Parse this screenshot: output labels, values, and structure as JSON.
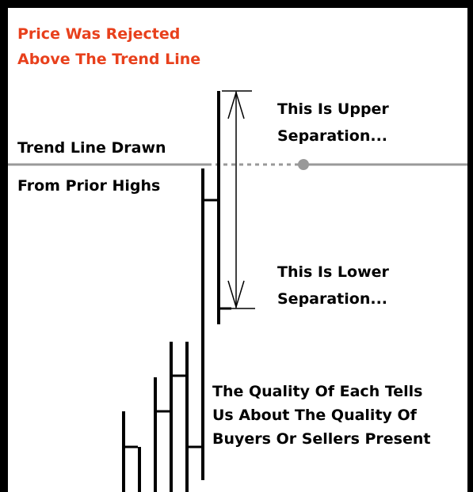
{
  "title": {
    "lines": [
      "Price Was Rejected",
      "Above The Trend Line"
    ]
  },
  "trend_label": {
    "lines": [
      "Trend Line Drawn",
      "From Prior Highs"
    ]
  },
  "upper_label": {
    "lines": [
      "This Is Upper",
      "Separation..."
    ]
  },
  "lower_label": {
    "lines": [
      "This Is Lower",
      "Separation..."
    ]
  },
  "quality_label": {
    "lines": [
      "The Quality Of Each Tells",
      "Us About The Quality Of",
      "Buyers Or Sellers Present"
    ]
  }
}
